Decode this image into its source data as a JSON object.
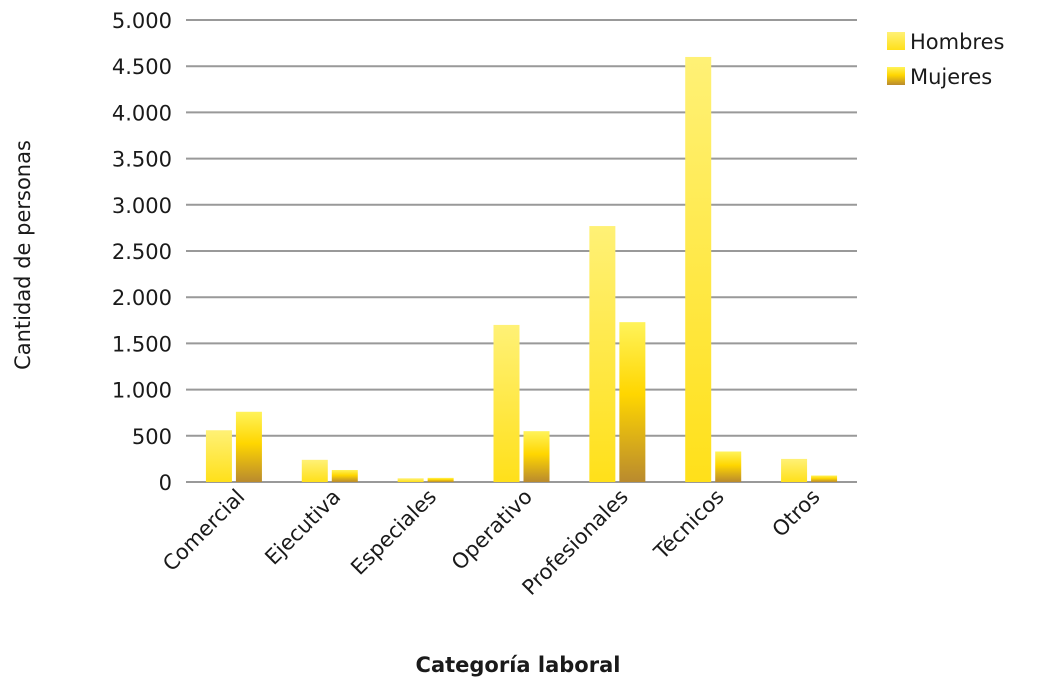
{
  "chart_data": {
    "type": "bar",
    "title": "",
    "xlabel": "Categoría laboral",
    "ylabel": "Cantidad de personas",
    "ylim": [
      0,
      5000
    ],
    "yticks": [
      0,
      500,
      1000,
      1500,
      2000,
      2500,
      3000,
      3500,
      4000,
      4500,
      5000
    ],
    "ytick_labels": [
      "0",
      "500",
      "1.000",
      "1.500",
      "2.000",
      "2.500",
      "3.000",
      "3.500",
      "4.000",
      "4.500",
      "5.000"
    ],
    "categories": [
      "Comercial",
      "Ejecutiva",
      "Especiales",
      "Operativo",
      "Profesionales",
      "Técnicos",
      "Otros"
    ],
    "series": [
      {
        "name": "Hombres",
        "values": [
          560,
          240,
          40,
          1700,
          2770,
          4600,
          250
        ]
      },
      {
        "name": "Mujeres",
        "values": [
          760,
          130,
          45,
          550,
          1730,
          330,
          70
        ]
      }
    ],
    "grid": true,
    "legend": "top-right",
    "colors": {
      "Hombres": {
        "top": "#FFF176",
        "bottom": "#FFE01A"
      },
      "Mujeres": {
        "top": "#FFF35A",
        "mid": "#FFD600",
        "bottom": "#B98A2E"
      },
      "grid": "#999999"
    }
  }
}
